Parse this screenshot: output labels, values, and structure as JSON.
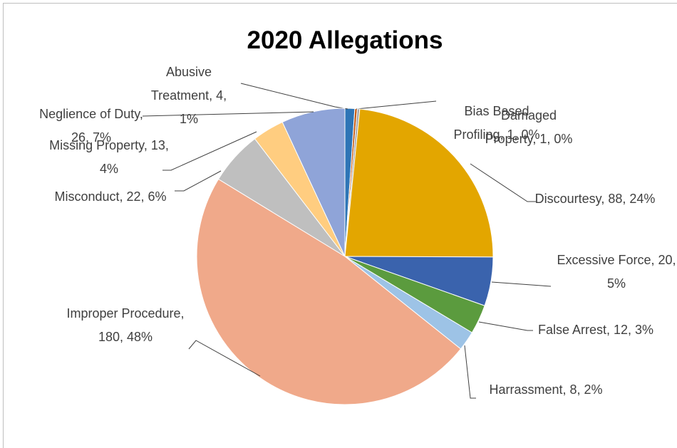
{
  "chart_data": {
    "type": "pie",
    "title": "2020 Allegations",
    "values": [
      4,
      1,
      1,
      88,
      20,
      12,
      8,
      180,
      22,
      13,
      26
    ],
    "value_labels": [
      "Abusive Treatment, 4, 1%",
      "Bias Based Profiling, 1, 0%",
      "Damaged Property, 1, 0%",
      "Discourtesy, 88, 24%",
      "Excessive Force, 20, 5%",
      "False Arrest, 12, 3%",
      "Harrassment, 8, 2%",
      "Improper Procedure, 180, 48%",
      "Misconduct, 22, 6%",
      "Missing Property, 13, 4%",
      "Neglience of Duty, 26, 7%"
    ],
    "colors": [
      "#2e75b6",
      "#c55a11",
      "#a5a5a5",
      "#e3a600",
      "#3a63ad",
      "#5b9b3e",
      "#9dc3e6",
      "#f0a98a",
      "#bfbfbf",
      "#ffcd80",
      "#8fa4d8"
    ]
  }
}
